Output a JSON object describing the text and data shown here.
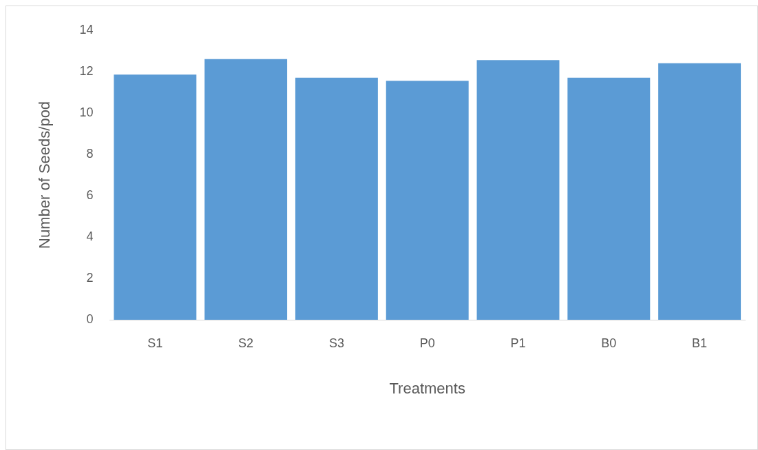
{
  "chart_data": {
    "type": "bar",
    "xlabel": "Treatments",
    "ylabel": "Number of Seeds/pod",
    "categories": [
      "S1",
      "S2",
      "S3",
      "P0",
      "P1",
      "B0",
      "B1"
    ],
    "values": [
      11.85,
      12.6,
      11.7,
      11.55,
      12.55,
      11.7,
      12.4
    ],
    "color": "#5b9bd5",
    "ylim": [
      0,
      14
    ],
    "yticks": [
      0,
      2,
      4,
      6,
      8,
      10,
      12,
      14
    ],
    "grid": false,
    "legend": false
  }
}
